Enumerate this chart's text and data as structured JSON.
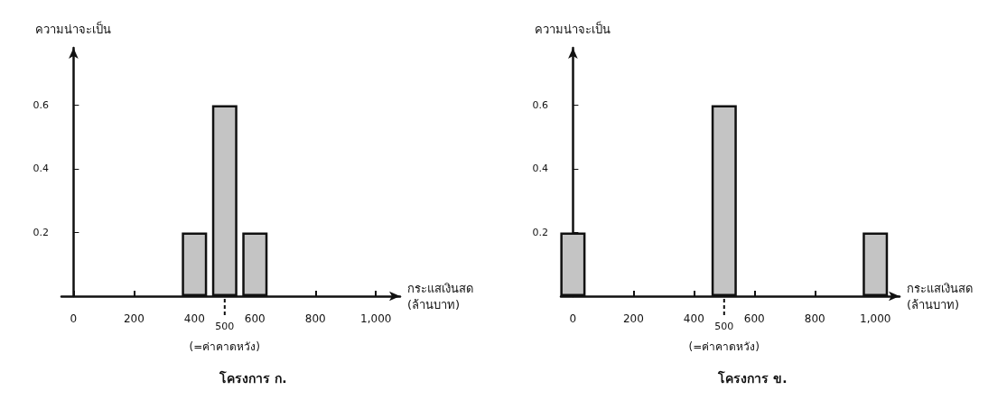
{
  "chart_data": [
    {
      "type": "bar",
      "title": "โครงการ ก.",
      "xlabel": "กระแสเงินสด\n(ล้านบาท)",
      "ylabel": "ความน่าจะเป็น",
      "x": [
        400,
        500,
        600
      ],
      "values": [
        0.2,
        0.6,
        0.2
      ],
      "color": "#c4c4c4",
      "xlim": [
        -40,
        1080
      ],
      "xticks": [
        0,
        200,
        400,
        600,
        800,
        {
          "value": 1000,
          "label": "1,000"
        }
      ],
      "ylim": [
        0,
        0.78
      ],
      "yticks": [
        0.2,
        0.4,
        0.6
      ],
      "ref_lines": [
        {
          "axis": "x",
          "value": 500,
          "label": "500",
          "line_style": "dashed"
        }
      ],
      "annotations": [
        "(=ค่าคาดหวัง)"
      ]
    },
    {
      "type": "bar",
      "title": "โครงการ ข.",
      "xlabel": "กระแสเงินสด\n(ล้านบาท)",
      "ylabel": "ความน่าจะเป็น",
      "x": [
        0,
        500,
        1000
      ],
      "values": [
        0.2,
        0.6,
        0.2
      ],
      "color": "#c4c4c4",
      "xlim": [
        -40,
        1080
      ],
      "xticks": [
        0,
        200,
        400,
        600,
        800,
        {
          "value": 1000,
          "label": "1,000"
        }
      ],
      "ylim": [
        0,
        0.78
      ],
      "yticks": [
        0.2,
        0.4,
        0.6
      ],
      "ref_lines": [
        {
          "axis": "x",
          "value": 500,
          "label": "500",
          "line_style": "dashed"
        }
      ],
      "annotations": [
        "(=ค่าคาดหวัง)"
      ]
    }
  ]
}
